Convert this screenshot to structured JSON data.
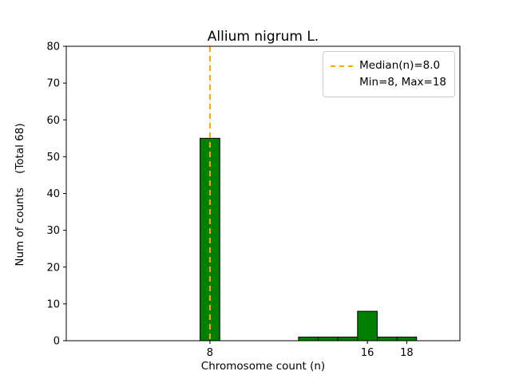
{
  "title": "Allium nigrum L.",
  "xlabel": "Chromosome count (n)",
  "ylabel": "Num of counts    (Total 68)",
  "legend": {
    "median_label": "Median(n)=8.0",
    "minmax_label": "Min=8, Max=18"
  },
  "colors": {
    "bar_fill": "#008000",
    "bar_edge": "#000000",
    "median_line": "#FFA500",
    "axis": "#000000",
    "legend_border": "#cccccc"
  },
  "chart_data": {
    "type": "bar",
    "title": "Allium nigrum L.",
    "xlabel": "Chromosome count (n)",
    "ylabel": "Num of counts    (Total 68)",
    "x": [
      8,
      13,
      14,
      15,
      16,
      17,
      18
    ],
    "values": [
      55,
      1,
      1,
      1,
      8,
      1,
      1
    ],
    "total_counts": 68,
    "median": 8.0,
    "min": 8,
    "max": 18,
    "bar_width": 1,
    "xlim": [
      0.7,
      20.7
    ],
    "ylim": [
      0,
      80
    ],
    "yticks": [
      0,
      10,
      20,
      30,
      40,
      50,
      60,
      70,
      80
    ],
    "xticks": [
      8,
      16,
      18
    ],
    "legend_position": "upper right",
    "grid": false
  }
}
